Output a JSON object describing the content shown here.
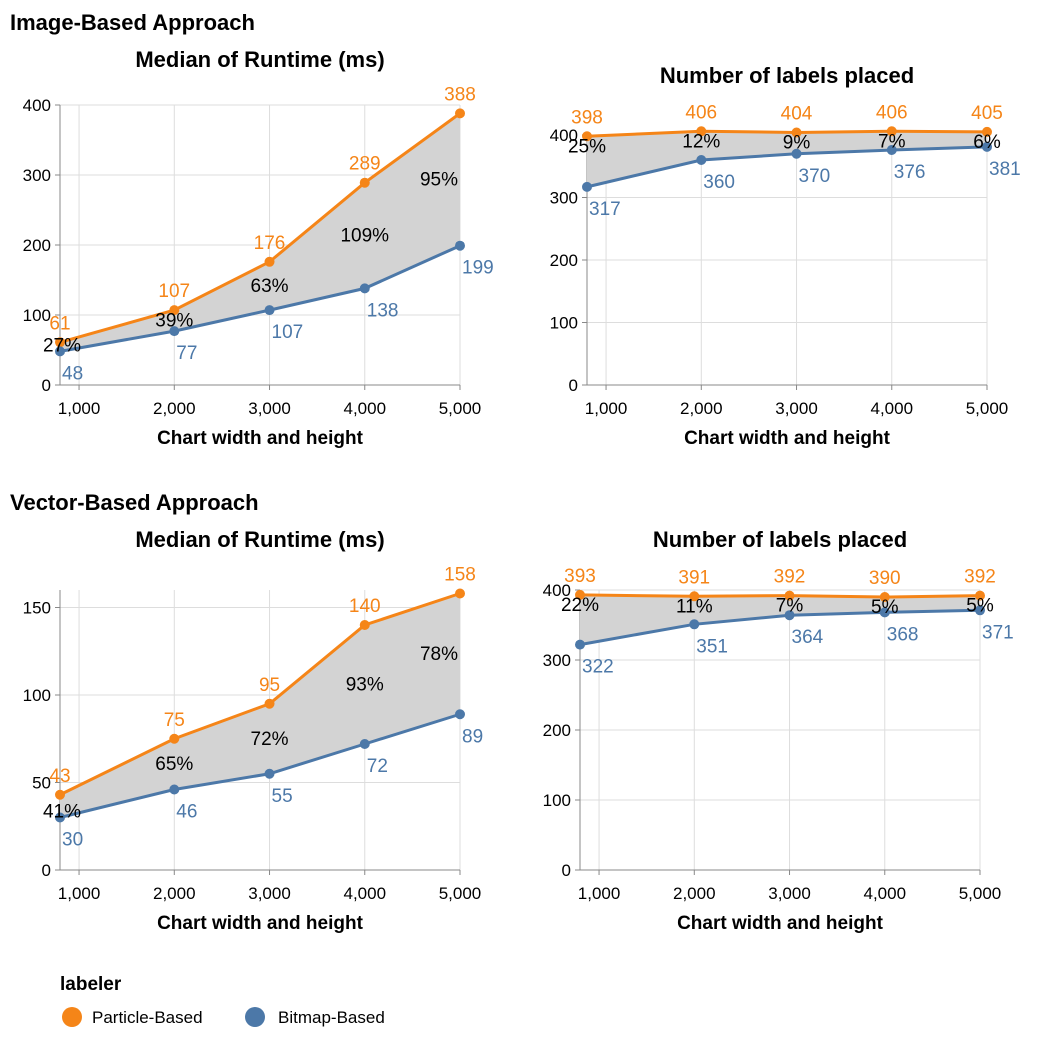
{
  "colors": {
    "particle": "#f58518",
    "bitmap": "#4c78a8",
    "area": "#d3d3d3",
    "grid": "#dddddd",
    "axis": "#888888"
  },
  "sections": [
    {
      "title": "Image-Based Approach"
    },
    {
      "title": "Vector-Based Approach"
    }
  ],
  "legend": {
    "title": "labeler",
    "items": [
      {
        "label": "Particle-Based",
        "color": "#f58518"
      },
      {
        "label": "Bitmap-Based",
        "color": "#4c78a8"
      }
    ]
  },
  "chart_data": [
    {
      "type": "line",
      "section": "Image-Based Approach",
      "title": "Median of Runtime (ms)",
      "xlabel": "Chart width and height",
      "ylabel": "",
      "x": [
        800,
        2000,
        3000,
        4000,
        5000
      ],
      "x_ticks": [
        1000,
        2000,
        3000,
        4000,
        5000
      ],
      "x_tick_labels": [
        "1,000",
        "2,000",
        "3,000",
        "4,000",
        "5,000"
      ],
      "xlim": [
        800,
        5000
      ],
      "ylim": [
        0,
        400
      ],
      "y_ticks": [
        0,
        100,
        200,
        300,
        400
      ],
      "y_tick_labels": [
        "0",
        "100",
        "200",
        "300",
        "400"
      ],
      "grid": true,
      "series": [
        {
          "name": "Particle-Based",
          "values": [
            61,
            107,
            176,
            289,
            388
          ],
          "labels": [
            "61",
            "107",
            "176",
            "289",
            "388"
          ]
        },
        {
          "name": "Bitmap-Based",
          "values": [
            48,
            77,
            107,
            138,
            199
          ],
          "labels": [
            "48",
            "77",
            "107",
            "138",
            "199"
          ]
        }
      ],
      "difference_labels": [
        "27%",
        "39%",
        "63%",
        "109%",
        "95%"
      ]
    },
    {
      "type": "line",
      "section": "Image-Based Approach",
      "title": "Number of labels placed",
      "xlabel": "Chart width and height",
      "ylabel": "",
      "x": [
        800,
        2000,
        3000,
        4000,
        5000
      ],
      "x_ticks": [
        1000,
        2000,
        3000,
        4000,
        5000
      ],
      "x_tick_labels": [
        "1,000",
        "2,000",
        "3,000",
        "4,000",
        "5,000"
      ],
      "xlim": [
        800,
        5000
      ],
      "ylim": [
        0,
        400
      ],
      "y_ticks": [
        0,
        100,
        200,
        300,
        400
      ],
      "y_tick_labels": [
        "0",
        "100",
        "200",
        "300",
        "400"
      ],
      "grid": true,
      "series": [
        {
          "name": "Particle-Based",
          "values": [
            398,
            406,
            404,
            406,
            405
          ],
          "labels": [
            "398",
            "406",
            "404",
            "406",
            "405"
          ]
        },
        {
          "name": "Bitmap-Based",
          "values": [
            317,
            360,
            370,
            376,
            381
          ],
          "labels": [
            "317",
            "360",
            "370",
            "376",
            "381"
          ]
        }
      ],
      "difference_labels": [
        "25%",
        "12%",
        "9%",
        "7%",
        "6%"
      ]
    },
    {
      "type": "line",
      "section": "Vector-Based Approach",
      "title": "Median of Runtime (ms)",
      "xlabel": "Chart width and height",
      "ylabel": "",
      "x": [
        800,
        2000,
        3000,
        4000,
        5000
      ],
      "x_ticks": [
        1000,
        2000,
        3000,
        4000,
        5000
      ],
      "x_tick_labels": [
        "1,000",
        "2,000",
        "3,000",
        "4,000",
        "5,000"
      ],
      "xlim": [
        800,
        5000
      ],
      "ylim": [
        0,
        160
      ],
      "y_ticks": [
        0,
        50,
        100,
        150
      ],
      "y_tick_labels": [
        "0",
        "50",
        "100",
        "150"
      ],
      "grid": true,
      "series": [
        {
          "name": "Particle-Based",
          "values": [
            43,
            75,
            95,
            140,
            158
          ],
          "labels": [
            "43",
            "75",
            "95",
            "140",
            "158"
          ]
        },
        {
          "name": "Bitmap-Based",
          "values": [
            30,
            46,
            55,
            72,
            89
          ],
          "labels": [
            "30",
            "46",
            "55",
            "72",
            "89"
          ]
        }
      ],
      "difference_labels": [
        "41%",
        "65%",
        "72%",
        "93%",
        "78%"
      ]
    },
    {
      "type": "line",
      "section": "Vector-Based Approach",
      "title": "Number of labels placed",
      "xlabel": "Chart width and height",
      "ylabel": "",
      "x": [
        800,
        2000,
        3000,
        4000,
        5000
      ],
      "x_ticks": [
        1000,
        2000,
        3000,
        4000,
        5000
      ],
      "x_tick_labels": [
        "1,000",
        "2,000",
        "3,000",
        "4,000",
        "5,000"
      ],
      "xlim": [
        800,
        5000
      ],
      "ylim": [
        0,
        400
      ],
      "y_ticks": [
        0,
        100,
        200,
        300,
        400
      ],
      "y_tick_labels": [
        "0",
        "100",
        "200",
        "300",
        "400"
      ],
      "grid": true,
      "series": [
        {
          "name": "Particle-Based",
          "values": [
            393,
            391,
            392,
            390,
            392
          ],
          "labels": [
            "393",
            "391",
            "392",
            "390",
            "392"
          ]
        },
        {
          "name": "Bitmap-Based",
          "values": [
            322,
            351,
            364,
            368,
            371
          ],
          "labels": [
            "322",
            "351",
            "364",
            "368",
            "371"
          ]
        }
      ],
      "difference_labels": [
        "22%",
        "11%",
        "7%",
        "5%",
        "5%"
      ]
    }
  ]
}
